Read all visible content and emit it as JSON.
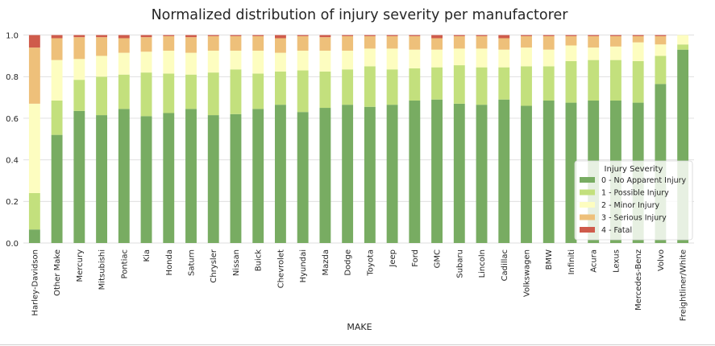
{
  "chart_data": {
    "type": "bar",
    "stacked": true,
    "title": "Normalized distribution of injury severity per manufactorer",
    "xlabel": "MAKE",
    "ylabel": "",
    "ylim": [
      0,
      1.05
    ],
    "yticks": [
      "0.0",
      "0.2",
      "0.4",
      "0.6",
      "0.8",
      "1.0"
    ],
    "grid": true,
    "legend": {
      "title": "Injury Severity",
      "placement": "lower-right"
    },
    "categories": [
      "Harley-Davidson",
      "Other Make",
      "Mercury",
      "Mitsubishi",
      "Pontiac",
      "Kia",
      "Honda",
      "Saturn",
      "Chrysler",
      "Nissan",
      "Buick",
      "Chevrolet",
      "Hyundai",
      "Mazda",
      "Dodge",
      "Toyota",
      "Jeep",
      "Ford",
      "GMC",
      "Subaru",
      "Lincoln",
      "Cadillac",
      "Volkswagen",
      "BMW",
      "Infiniti",
      "Acura",
      "Lexus",
      "Mercedes-Benz",
      "Volvo",
      "Freightliner/White"
    ],
    "series": [
      {
        "name": "0 - No Apparent Injury",
        "color": "#78ac62",
        "values": [
          0.065,
          0.52,
          0.635,
          0.615,
          0.645,
          0.61,
          0.625,
          0.645,
          0.615,
          0.62,
          0.645,
          0.665,
          0.63,
          0.65,
          0.665,
          0.655,
          0.665,
          0.685,
          0.69,
          0.67,
          0.665,
          0.69,
          0.66,
          0.685,
          0.675,
          0.685,
          0.685,
          0.675,
          0.765,
          0.93
        ]
      },
      {
        "name": "1 - Possible Injury",
        "color": "#c3e07d",
        "values": [
          0.175,
          0.165,
          0.15,
          0.185,
          0.165,
          0.21,
          0.19,
          0.165,
          0.205,
          0.215,
          0.17,
          0.16,
          0.2,
          0.175,
          0.17,
          0.195,
          0.17,
          0.155,
          0.155,
          0.185,
          0.18,
          0.155,
          0.19,
          0.165,
          0.2,
          0.195,
          0.195,
          0.2,
          0.135,
          0.025
        ]
      },
      {
        "name": "2 - Minor Injury",
        "color": "#fdfdc0",
        "values": [
          0.43,
          0.195,
          0.1,
          0.1,
          0.105,
          0.1,
          0.11,
          0.105,
          0.105,
          0.09,
          0.11,
          0.09,
          0.095,
          0.1,
          0.09,
          0.085,
          0.1,
          0.09,
          0.085,
          0.08,
          0.09,
          0.085,
          0.09,
          0.08,
          0.075,
          0.06,
          0.065,
          0.09,
          0.055,
          0.045
        ]
      },
      {
        "name": "3 - Serious Injury",
        "color": "#eec07a",
        "values": [
          0.27,
          0.105,
          0.105,
          0.09,
          0.07,
          0.07,
          0.07,
          0.075,
          0.07,
          0.07,
          0.07,
          0.07,
          0.07,
          0.065,
          0.07,
          0.06,
          0.06,
          0.065,
          0.055,
          0.06,
          0.06,
          0.055,
          0.055,
          0.065,
          0.045,
          0.055,
          0.05,
          0.03,
          0.04,
          0.0
        ]
      },
      {
        "name": "4 - Fatal",
        "color": "#cf5b4b",
        "values": [
          0.06,
          0.015,
          0.01,
          0.01,
          0.015,
          0.01,
          0.005,
          0.01,
          0.005,
          0.005,
          0.005,
          0.015,
          0.005,
          0.01,
          0.005,
          0.005,
          0.005,
          0.005,
          0.015,
          0.005,
          0.005,
          0.015,
          0.005,
          0.005,
          0.005,
          0.005,
          0.005,
          0.005,
          0.005,
          0.0
        ]
      }
    ]
  }
}
